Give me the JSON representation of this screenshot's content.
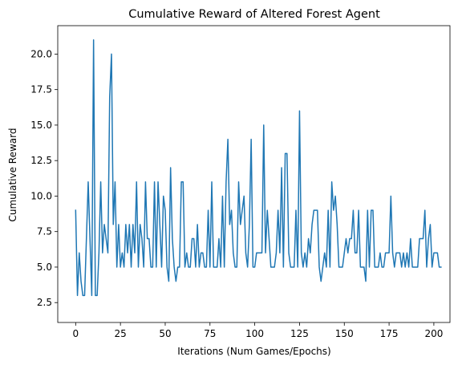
{
  "chart_data": {
    "type": "line",
    "title": "Cumulative Reward of Altered Forest Agent",
    "xlabel": "Iterations (Num Games/Epochs)",
    "ylabel": "Cumulative Reward",
    "xlim": [
      -10,
      209
    ],
    "ylim": [
      1.1,
      22.0
    ],
    "xticks": [
      0,
      25,
      50,
      75,
      100,
      125,
      150,
      175,
      200
    ],
    "yticks": [
      2.5,
      5.0,
      7.5,
      10.0,
      12.5,
      15.0,
      17.5,
      20.0
    ],
    "grid": false,
    "line_color": "#1f77b4",
    "series": [
      {
        "values": [
          9,
          3,
          6,
          4,
          3,
          3,
          7,
          11,
          7,
          3,
          21,
          3,
          3,
          6,
          11,
          6,
          8,
          7,
          6,
          17,
          20,
          8,
          11,
          5,
          8,
          5,
          6,
          5,
          8,
          6,
          8,
          5,
          8,
          6,
          11,
          5,
          8,
          7,
          5,
          11,
          7,
          7,
          5,
          5,
          11,
          5,
          11,
          8,
          5,
          10,
          9,
          5,
          4,
          12,
          7,
          5,
          4,
          5,
          5,
          11,
          11,
          5,
          6,
          5,
          5,
          7,
          7,
          5,
          8,
          5,
          6,
          6,
          5,
          5,
          9,
          5,
          11,
          5,
          5,
          5,
          7,
          5,
          10,
          5,
          11,
          14,
          8,
          9,
          6,
          5,
          5,
          11,
          8,
          9,
          10,
          6,
          5,
          8,
          14,
          5,
          5,
          6,
          6,
          6,
          6,
          15,
          6,
          9,
          7,
          5,
          5,
          5,
          6,
          9,
          6,
          12,
          5,
          13,
          13,
          6,
          5,
          5,
          5,
          9,
          5,
          16,
          6,
          5,
          6,
          5,
          7,
          6,
          8,
          9,
          9,
          9,
          5,
          4,
          5,
          6,
          5,
          9,
          5,
          11,
          9,
          10,
          8,
          5,
          5,
          5,
          6,
          7,
          6,
          7,
          7,
          9,
          6,
          6,
          9,
          5,
          5,
          5,
          4,
          9,
          5,
          9,
          9,
          5,
          5,
          5,
          6,
          5,
          5,
          6,
          6,
          6,
          10,
          6,
          5,
          6,
          6,
          6,
          5,
          6,
          5,
          6,
          5,
          7,
          5,
          5,
          5,
          5,
          7,
          7,
          7,
          9,
          5,
          7,
          8,
          5,
          6,
          6,
          6,
          5,
          5
        ]
      }
    ]
  }
}
